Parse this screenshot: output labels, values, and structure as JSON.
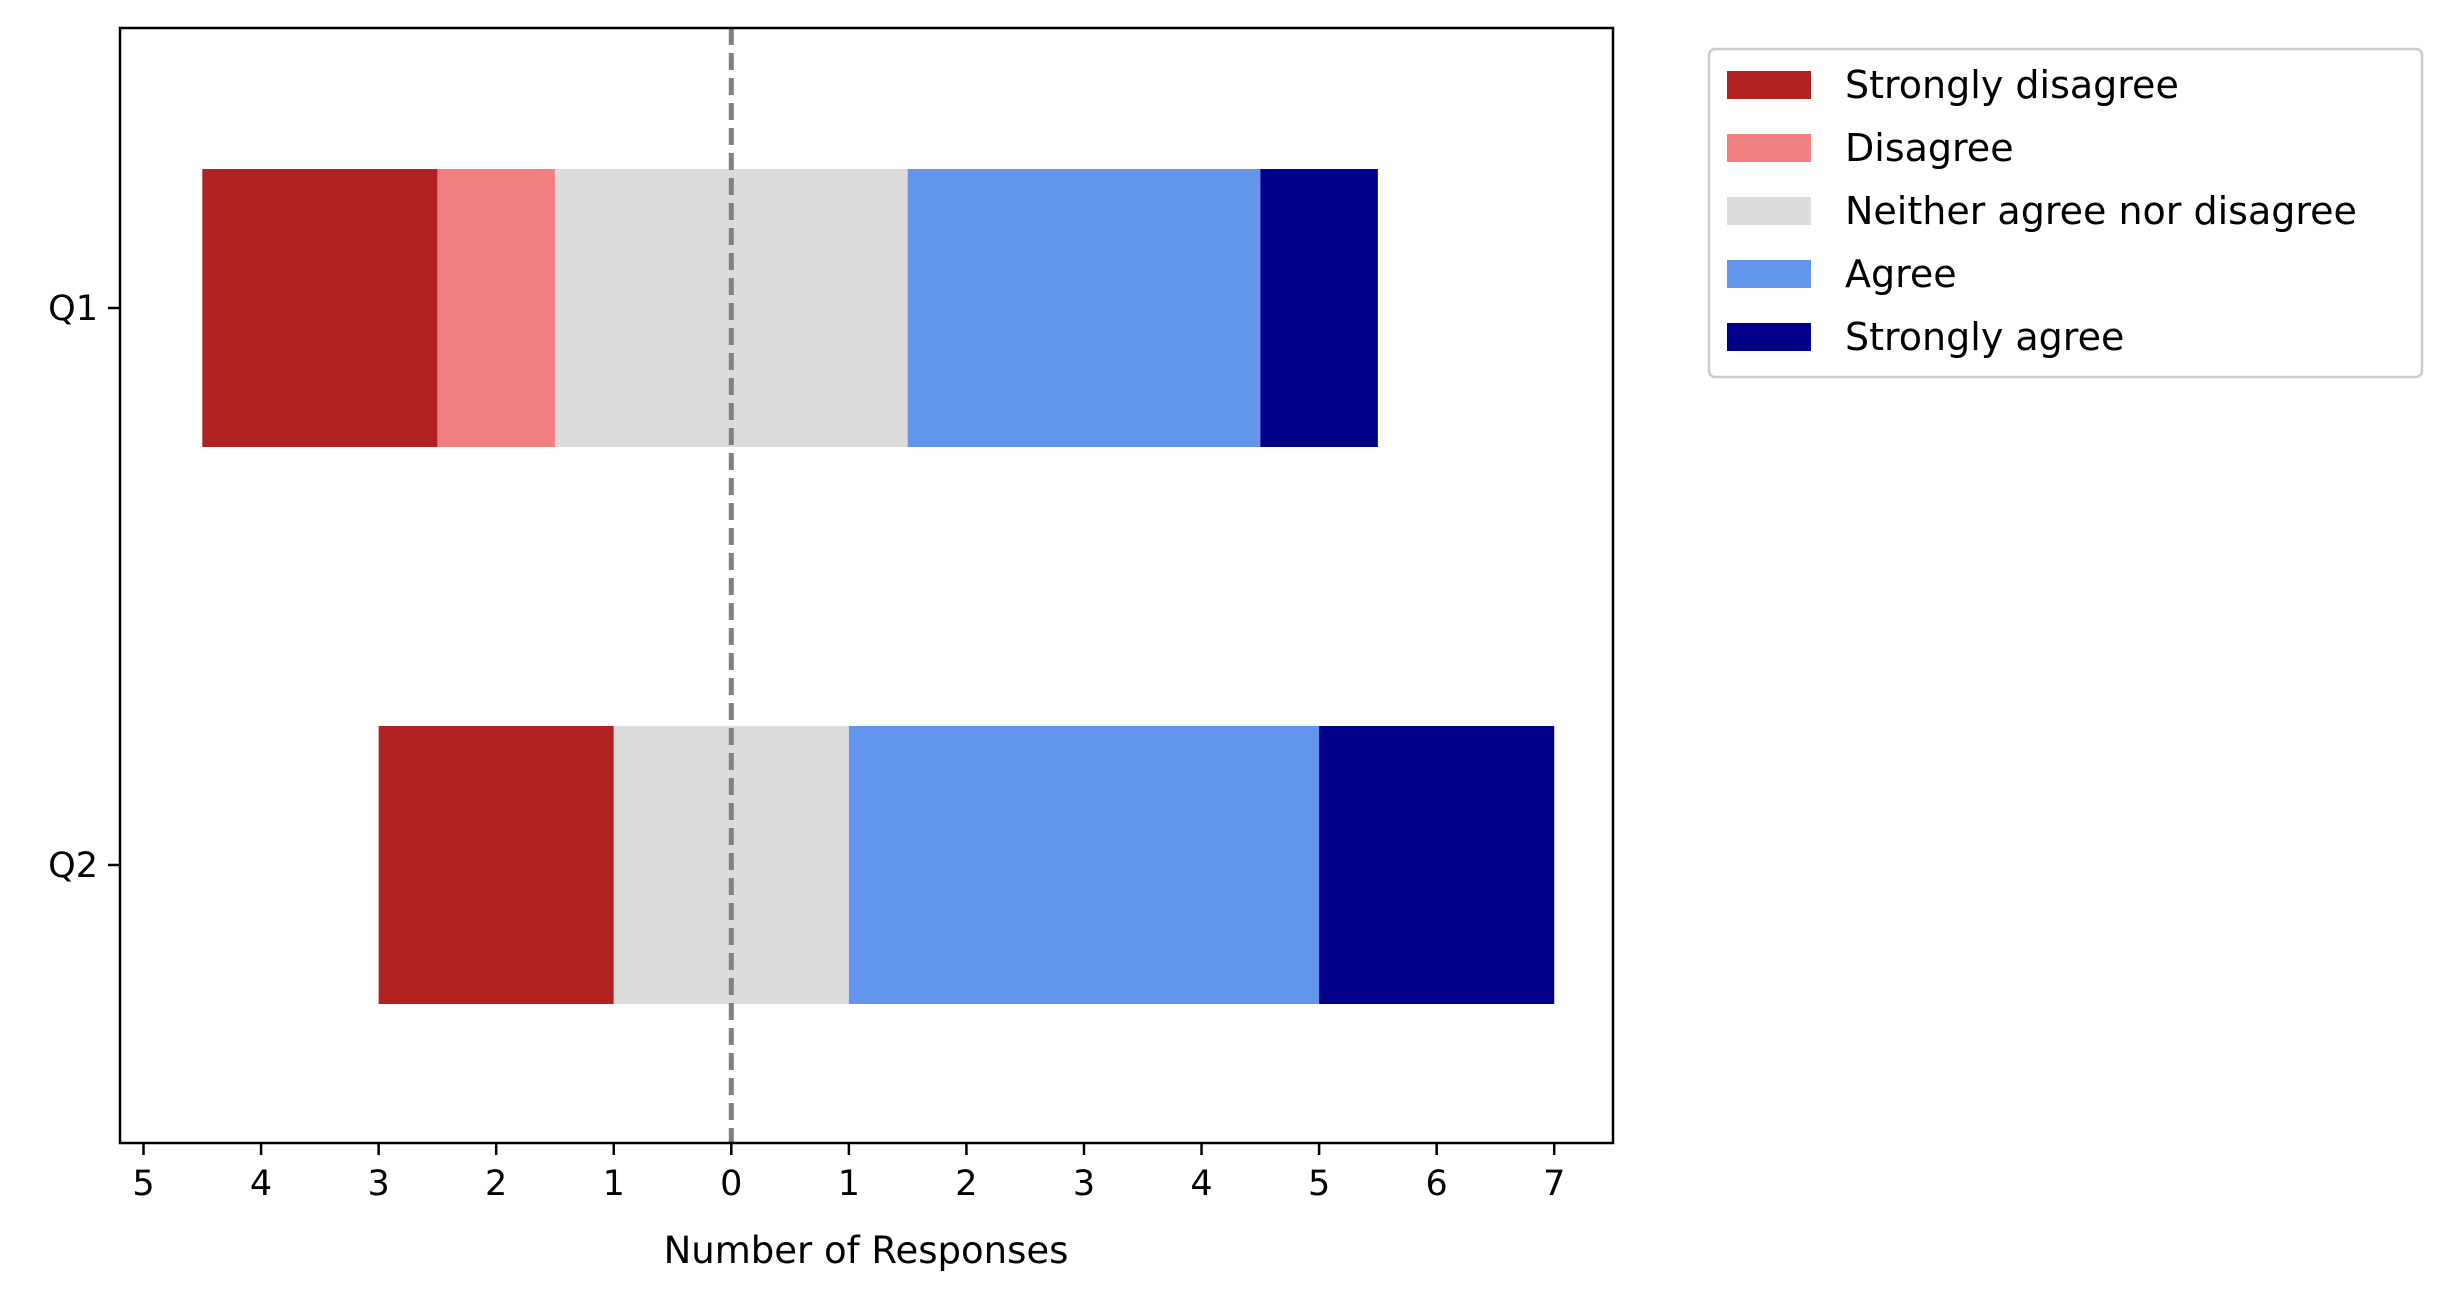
{
  "chart_data": {
    "type": "bar",
    "orientation": "horizontal-diverging",
    "title": "",
    "xlabel": "Number of Responses",
    "ylabel": "",
    "categories": [
      "Q1",
      "Q2"
    ],
    "series": [
      {
        "name": "Strongly disagree",
        "color": "#b22222",
        "values": [
          2,
          2
        ]
      },
      {
        "name": "Disagree",
        "color": "#f08080",
        "values": [
          1,
          0
        ]
      },
      {
        "name": "Neither agree nor disagree",
        "color": "#dcdcdc",
        "values": [
          3,
          2
        ]
      },
      {
        "name": "Agree",
        "color": "#6495ed",
        "values": [
          3,
          4
        ]
      },
      {
        "name": "Strongly agree",
        "color": "#00008b",
        "values": [
          1,
          2
        ]
      }
    ],
    "xlim": [
      -5.2,
      7.5
    ],
    "x_ticks": [
      -5,
      -4,
      -3,
      -2,
      -1,
      0,
      1,
      2,
      3,
      4,
      5,
      6,
      7
    ],
    "x_tick_labels": [
      "5",
      "4",
      "3",
      "2",
      "1",
      "0",
      "1",
      "2",
      "3",
      "4",
      "5",
      "6",
      "7"
    ],
    "center_line": {
      "x": 0,
      "style": "dashed",
      "color": "#808080"
    },
    "legend_position": "outside-top-right",
    "grid": false
  }
}
